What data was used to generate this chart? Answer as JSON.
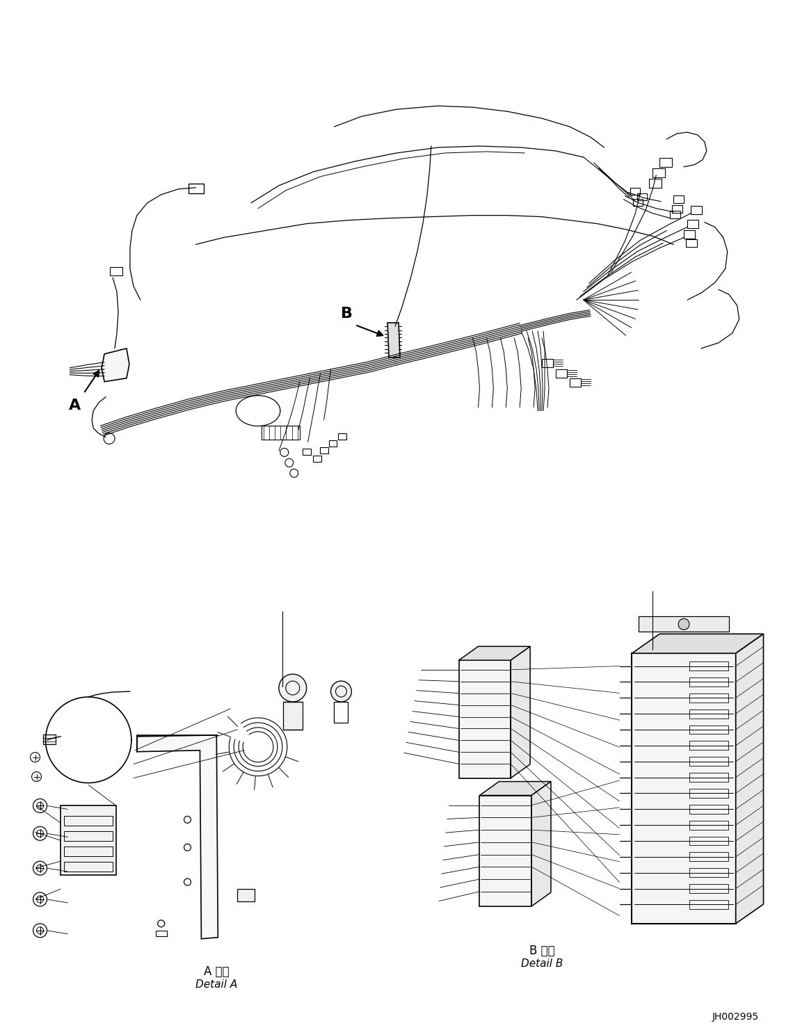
{
  "background_color": "#ffffff",
  "line_color": "#000000",
  "label_A": "A",
  "label_B": "B",
  "detail_A_label_jp": "A 詳細",
  "detail_A_label_en": "Detail A",
  "detail_B_label_jp": "B 詳細",
  "detail_B_label_en": "Detail B",
  "part_number": "JH002995",
  "fig_width": 11.63,
  "fig_height": 14.88,
  "dpi": 100
}
